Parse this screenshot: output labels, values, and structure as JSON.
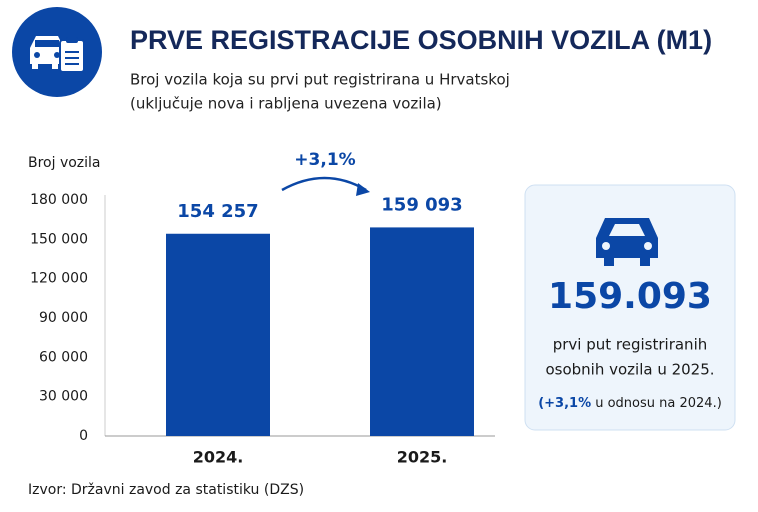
{
  "chart_data": {
    "type": "bar",
    "title": "PRVE REGISTRACIJE OSOBNIH VOZILA (M1)",
    "subtitle": [
      "Broj vozila koja su prvi put registrirana u Hrvatskoj",
      "(uključuje nova i rabljena uvezena vozila)"
    ],
    "y_label": "Broj vozila",
    "categories": [
      "2024.",
      "2025."
    ],
    "values": [
      154257,
      159093
    ],
    "value_labels": [
      "154 257",
      "159 093"
    ],
    "color": "#0b47a6",
    "ylim": [
      0,
      180000
    ],
    "yticks": [
      0,
      {
        "value": 30000,
        "label": "30 000"
      },
      {
        "value": 60000,
        "label": "60 000"
      },
      {
        "value": 90000,
        "label": "90 000"
      },
      {
        "value": 120000,
        "label": "120 000"
      },
      {
        "value": 150000,
        "label": "150 000"
      },
      {
        "value": 180000,
        "label": "180 000"
      }
    ],
    "grid": false,
    "annotation": "+3,1%",
    "source": "Izvor: Državni zavod za statistiku (DZS)"
  },
  "card": {
    "value": "159.093",
    "lines": [
      "prvi put registriranih",
      "osobnih vozila u 2025."
    ],
    "note_highlight": "(+3,1%",
    "note_rest": "u odnosu na 2024.)"
  }
}
